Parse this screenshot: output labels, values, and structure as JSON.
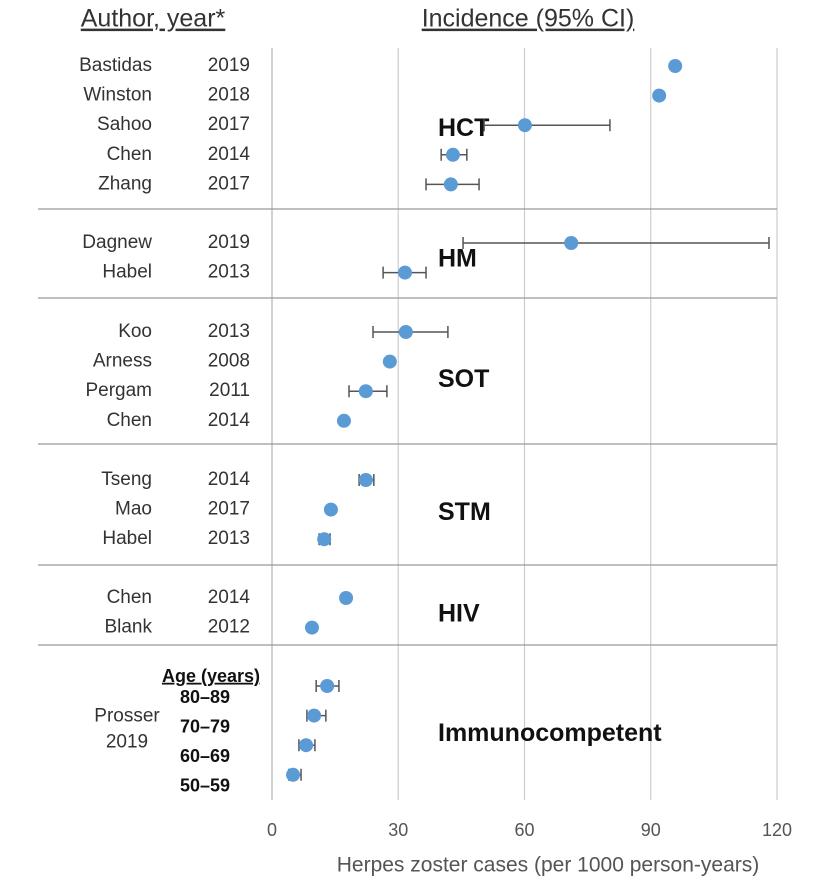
{
  "chart_data": {
    "type": "forest",
    "author_header": "Author, year*",
    "value_header": "Incidence (95% CI)",
    "x_label": "Herpes zoster cases (per 1000 person-years)",
    "xlim": [
      0,
      120
    ],
    "xticks": [
      0,
      30,
      60,
      90,
      120
    ],
    "grid": true,
    "color": "#5b9bd5",
    "groups": [
      {
        "name": "HCT",
        "rows": [
          {
            "author": "Bastidas",
            "year": "2019",
            "value": 95.8
          },
          {
            "author": "Winston",
            "year": "2018",
            "value": 92.0
          },
          {
            "author": "Sahoo",
            "year": "2017",
            "value": 60.1,
            "ci_low": 50.4,
            "ci_high": 80.3
          },
          {
            "author": "Chen",
            "year": "2014",
            "value": 43.0,
            "ci_low": 40.2,
            "ci_high": 46.3
          },
          {
            "author": "Zhang",
            "year": "2017",
            "value": 42.5,
            "ci_low": 36.6,
            "ci_high": 49.2
          }
        ]
      },
      {
        "name": "HM",
        "rows": [
          {
            "author": "Dagnew",
            "year": "2019",
            "value": 71.1,
            "ci_low": 45.4,
            "ci_high": 118.1
          },
          {
            "author": "Habel",
            "year": "2013",
            "value": 31.6,
            "ci_low": 26.4,
            "ci_high": 36.6
          }
        ]
      },
      {
        "name": "SOT",
        "rows": [
          {
            "author": "Koo",
            "year": "2013",
            "value": 31.8,
            "ci_low": 24.0,
            "ci_high": 41.8
          },
          {
            "author": "Arness",
            "year": "2008",
            "value": 28.0
          },
          {
            "author": "Pergam",
            "year": "2011",
            "value": 22.3,
            "ci_low": 18.3,
            "ci_high": 27.3
          },
          {
            "author": "Chen",
            "year": "2014",
            "value": 17.1
          }
        ]
      },
      {
        "name": "STM",
        "rows": [
          {
            "author": "Tseng",
            "year": "2014",
            "value": 22.3,
            "ci_low": 20.7,
            "ci_high": 24.2
          },
          {
            "author": "Mao",
            "year": "2017",
            "value": 14.0
          },
          {
            "author": "Habel",
            "year": "2013",
            "value": 12.4,
            "ci_low": 11.2,
            "ci_high": 13.8
          }
        ]
      },
      {
        "name": "HIV",
        "rows": [
          {
            "author": "Chen",
            "year": "2014",
            "value": 17.6
          },
          {
            "author": "Blank",
            "year": "2012",
            "value": 9.5
          }
        ]
      },
      {
        "name": "Immunocompetent",
        "author": "Prosser",
        "year": "2019",
        "subheader": "Age (years)",
        "rows": [
          {
            "label": "80–89",
            "value": 13.1,
            "ci_low": 10.5,
            "ci_high": 15.9
          },
          {
            "label": "70–79",
            "value": 10.0,
            "ci_low": 8.3,
            "ci_high": 12.8
          },
          {
            "label": "60–69",
            "value": 8.1,
            "ci_low": 6.4,
            "ci_high": 10.2
          },
          {
            "label": "50–59",
            "value": 5.0,
            "ci_low": 4.0,
            "ci_high": 6.9
          }
        ]
      }
    ]
  }
}
